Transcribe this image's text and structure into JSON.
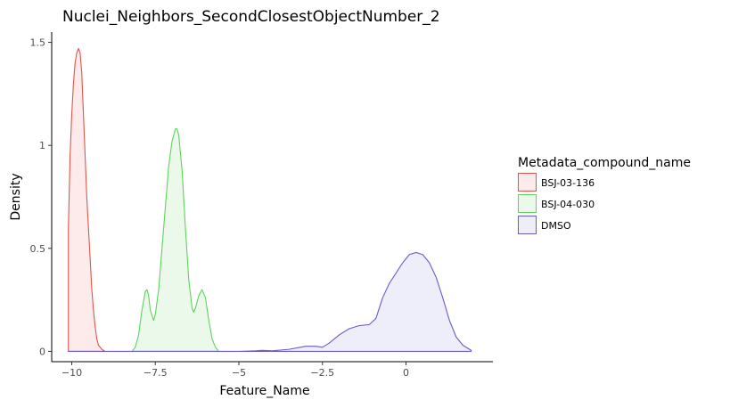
{
  "chart_data": {
    "type": "area",
    "title": "Nuclei_Neighbors_SecondClosestObjectNumber_2",
    "xlabel": "Feature_Name",
    "ylabel": "Density",
    "xlim": [
      -10.6,
      2.6
    ],
    "ylim": [
      -0.05,
      1.55
    ],
    "x_ticks": [
      {
        "value": -10,
        "label": "−10"
      },
      {
        "value": -7.5,
        "label": "−7.5"
      },
      {
        "value": -5,
        "label": "−5"
      },
      {
        "value": -2.5,
        "label": "−2.5"
      },
      {
        "value": 0,
        "label": "0"
      }
    ],
    "y_ticks": [
      {
        "value": 0,
        "label": "0"
      },
      {
        "value": 0.5,
        "label": "0.5"
      },
      {
        "value": 1,
        "label": "1"
      },
      {
        "value": 1.5,
        "label": "1.5"
      }
    ],
    "grid": false,
    "legend": {
      "title": "Metadata_compound_name",
      "position": "right"
    },
    "series": [
      {
        "name": "BSJ-03-136",
        "line_color": "#d9584c",
        "fill_color": "#fcebea",
        "points": [
          [
            -10.1,
            0
          ],
          [
            -10.1,
            0.6
          ],
          [
            -10.05,
            0.95
          ],
          [
            -10.0,
            1.15
          ],
          [
            -9.95,
            1.3
          ],
          [
            -9.9,
            1.4
          ],
          [
            -9.85,
            1.45
          ],
          [
            -9.8,
            1.47
          ],
          [
            -9.75,
            1.45
          ],
          [
            -9.7,
            1.35
          ],
          [
            -9.65,
            1.15
          ],
          [
            -9.6,
            0.95
          ],
          [
            -9.55,
            0.75
          ],
          [
            -9.5,
            0.6
          ],
          [
            -9.45,
            0.45
          ],
          [
            -9.4,
            0.3
          ],
          [
            -9.35,
            0.2
          ],
          [
            -9.3,
            0.12
          ],
          [
            -9.25,
            0.06
          ],
          [
            -9.2,
            0.03
          ],
          [
            -9.1,
            0.01
          ],
          [
            -9.0,
            0
          ]
        ]
      },
      {
        "name": "BSJ-04-030",
        "line_color": "#5fd35b",
        "fill_color": "#ebf9ea",
        "points": [
          [
            -8.2,
            0
          ],
          [
            -8.1,
            0.02
          ],
          [
            -8.0,
            0.08
          ],
          [
            -7.9,
            0.2
          ],
          [
            -7.8,
            0.29
          ],
          [
            -7.75,
            0.3
          ],
          [
            -7.7,
            0.27
          ],
          [
            -7.65,
            0.2
          ],
          [
            -7.55,
            0.15
          ],
          [
            -7.5,
            0.18
          ],
          [
            -7.4,
            0.3
          ],
          [
            -7.3,
            0.5
          ],
          [
            -7.2,
            0.7
          ],
          [
            -7.1,
            0.9
          ],
          [
            -7.0,
            1.02
          ],
          [
            -6.9,
            1.08
          ],
          [
            -6.85,
            1.08
          ],
          [
            -6.8,
            1.05
          ],
          [
            -6.7,
            0.88
          ],
          [
            -6.6,
            0.6
          ],
          [
            -6.5,
            0.35
          ],
          [
            -6.4,
            0.21
          ],
          [
            -6.35,
            0.19
          ],
          [
            -6.3,
            0.21
          ],
          [
            -6.2,
            0.27
          ],
          [
            -6.1,
            0.3
          ],
          [
            -6.0,
            0.26
          ],
          [
            -5.9,
            0.15
          ],
          [
            -5.8,
            0.06
          ],
          [
            -5.7,
            0.02
          ],
          [
            -5.6,
            0
          ]
        ]
      },
      {
        "name": "DMSO",
        "line_color": "#6a5bd0",
        "fill_color": "#eeedfa",
        "points": [
          [
            -10.1,
            0
          ],
          [
            -6.0,
            0
          ],
          [
            -5.0,
            0
          ],
          [
            -4.5,
            0.003
          ],
          [
            -4.3,
            0.005
          ],
          [
            -4.0,
            0.003
          ],
          [
            -3.5,
            0.01
          ],
          [
            -3.0,
            0.025
          ],
          [
            -2.7,
            0.025
          ],
          [
            -2.5,
            0.02
          ],
          [
            -2.3,
            0.04
          ],
          [
            -2.0,
            0.08
          ],
          [
            -1.7,
            0.11
          ],
          [
            -1.4,
            0.125
          ],
          [
            -1.1,
            0.13
          ],
          [
            -0.9,
            0.16
          ],
          [
            -0.7,
            0.26
          ],
          [
            -0.5,
            0.33
          ],
          [
            -0.3,
            0.38
          ],
          [
            -0.1,
            0.43
          ],
          [
            0.1,
            0.47
          ],
          [
            0.3,
            0.48
          ],
          [
            0.5,
            0.47
          ],
          [
            0.7,
            0.43
          ],
          [
            0.9,
            0.36
          ],
          [
            1.1,
            0.26
          ],
          [
            1.3,
            0.15
          ],
          [
            1.5,
            0.07
          ],
          [
            1.7,
            0.03
          ],
          [
            1.9,
            0.01
          ],
          [
            1.95,
            0.005
          ],
          [
            1.95,
            0
          ]
        ]
      }
    ]
  }
}
